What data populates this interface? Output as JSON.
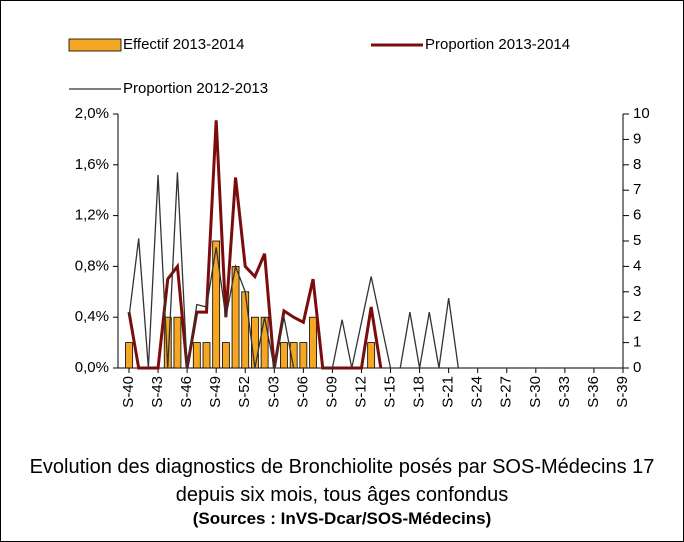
{
  "chart_data": {
    "type": "bar-line",
    "title": "Evolution des diagnostics de Bronchiolite posés par SOS-Médecins 17 depuis six mois, tous âges confondus",
    "subtitle": "(Sources : InVS-Dcar/SOS-Médecins)",
    "categories": [
      "S-40",
      null,
      null,
      "S-43",
      null,
      null,
      "S-46",
      null,
      null,
      "S-49",
      null,
      null,
      "S-52",
      null,
      null,
      "S-03",
      null,
      null,
      "S-06",
      null,
      null,
      "S-09",
      null,
      null,
      "S-12",
      null,
      null,
      "S-15",
      null,
      null,
      "S-18",
      null,
      null,
      "S-21",
      null,
      null,
      "S-24",
      null,
      null,
      "S-27",
      null,
      null,
      "S-30",
      null,
      null,
      "S-33",
      null,
      null,
      "S-36",
      null,
      null,
      "S-39"
    ],
    "ylim": [
      0,
      2.0
    ],
    "yticks": [
      {
        "value": 0,
        "label": "0,0%"
      },
      {
        "value": 0.4,
        "label": "0,4%"
      },
      {
        "value": 0.8,
        "label": "0,8%"
      },
      {
        "value": 1.2,
        "label": "1,2%"
      },
      {
        "value": 1.6,
        "label": "1,6%"
      },
      {
        "value": 2.0,
        "label": "2,0%"
      }
    ],
    "y2lim": [
      0,
      10
    ],
    "y2ticks": [
      0,
      1,
      2,
      3,
      4,
      5,
      6,
      7,
      8,
      9,
      10
    ],
    "series": [
      {
        "name": "Effectif 2013-2014",
        "kind": "bar",
        "axis": "y2",
        "color": "#f5a623",
        "values": [
          1,
          0,
          0,
          0,
          2,
          2,
          0,
          1,
          1,
          5,
          1,
          4,
          3,
          2,
          2,
          0,
          1,
          1,
          1,
          2,
          0,
          0,
          0,
          0,
          0,
          1,
          0,
          0,
          0,
          0,
          0,
          0,
          0,
          0,
          0,
          0,
          0,
          0,
          0,
          0,
          0,
          0,
          0,
          0,
          0,
          0,
          0,
          0,
          0,
          0,
          0,
          0
        ]
      },
      {
        "name": "Proportion 2013-2014",
        "kind": "line",
        "color": "#7b0c0c",
        "values": [
          0.44,
          0,
          0,
          0,
          0.7,
          0.8,
          0,
          0.44,
          0.44,
          1.95,
          0.4,
          1.5,
          0.8,
          0.72,
          0.9,
          0,
          0.45,
          0.4,
          0.36,
          0.7,
          0,
          0,
          0,
          0,
          0,
          0.48,
          0,
          null,
          null,
          null,
          null,
          null,
          null,
          null,
          null,
          null,
          null,
          null,
          null,
          null,
          null,
          null,
          null,
          null,
          null,
          null,
          null,
          null,
          null,
          null,
          null,
          null
        ]
      },
      {
        "name": "Proportion 2012-2013",
        "kind": "line",
        "color": "#333333",
        "values": [
          0.4,
          1.02,
          0,
          1.52,
          0,
          1.54,
          0,
          0.5,
          0.48,
          0.95,
          0.4,
          0.8,
          0.6,
          0,
          0.4,
          0,
          0.4,
          0,
          0,
          0,
          0,
          0,
          0.38,
          0,
          0.36,
          0.72,
          0.36,
          0,
          0,
          0.44,
          0,
          0.44,
          0,
          0.55,
          0,
          0,
          0,
          0,
          0,
          0,
          0,
          0,
          0,
          0,
          0,
          0,
          0,
          0,
          0,
          0,
          0,
          0
        ]
      }
    ]
  }
}
